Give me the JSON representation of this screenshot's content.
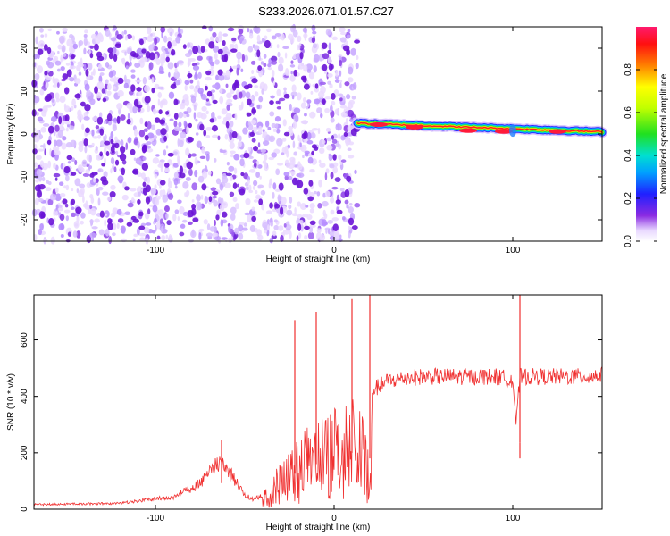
{
  "figure_title": "S233.2026.071.01.57.C27",
  "chart_data": [
    {
      "type": "heatmap",
      "title": "S233.2026.071.01.57.C27",
      "xlabel": "Height of straight line (km)",
      "ylabel": "Frequency (Hz)",
      "xlim": [
        -168,
        150
      ],
      "ylim": [
        -25,
        25
      ],
      "x_ticks": [
        -100,
        0,
        100
      ],
      "y_ticks": [
        20,
        10,
        0,
        -10,
        -20
      ],
      "x_tick_labels": [
        "-100",
        "0",
        "100"
      ],
      "y_tick_labels": [
        "20",
        "10",
        "0",
        "-10",
        "-20"
      ],
      "grid": false,
      "colormap": "rainbow (white/violet at 0 to red/magenta at 1)",
      "colorbar": {
        "label": "Normalized spectral amplitude",
        "range": [
          0,
          1
        ],
        "ticks": [
          0.0,
          0.2,
          0.4,
          0.6,
          0.8
        ],
        "tick_labels": [
          "0.0",
          "0.2",
          "0.4",
          "0.6",
          "0.8"
        ],
        "placement": "right"
      },
      "regions": [
        {
          "name": "noise",
          "x_range": [
            -168,
            13
          ],
          "freq_range": [
            -25,
            25
          ],
          "amplitude": [
            0.0,
            0.15
          ]
        },
        {
          "name": "signal line",
          "x_range": [
            13,
            150
          ],
          "freq_center_start": 2.5,
          "freq_center_end": 0.5,
          "freq_halfwidth": 2,
          "peak_amplitude": 1.0
        }
      ],
      "signal_peaks_x": [
        25,
        45,
        75,
        95,
        125
      ],
      "signal_peak_freqs": [
        2.2,
        1.6,
        0.8,
        0.6,
        0.6
      ]
    },
    {
      "type": "line",
      "xlabel": "Height of straight line (km)",
      "ylabel": "SNR (10 * v/v)",
      "xlim": [
        -168,
        150
      ],
      "ylim": [
        0,
        760
      ],
      "x_ticks": [
        -100,
        0,
        100
      ],
      "y_ticks": [
        0,
        200,
        400,
        600
      ],
      "x_tick_labels": [
        "-100",
        "0",
        "100"
      ],
      "y_tick_labels": [
        "0",
        "200",
        "400",
        "600"
      ],
      "grid": false,
      "color": "#f03030",
      "x": [
        -168,
        -120,
        -100,
        -90,
        -75,
        -68,
        -64,
        -60,
        -55,
        -50,
        -45,
        -40,
        -35,
        -30,
        -25,
        -20,
        -15,
        -10,
        -5,
        0,
        5,
        10,
        15,
        20,
        21,
        25,
        30,
        40,
        50,
        60,
        70,
        80,
        90,
        100,
        102,
        104,
        110,
        120,
        130,
        140,
        150
      ],
      "y": [
        20,
        25,
        45,
        50,
        110,
        180,
        190,
        170,
        120,
        60,
        40,
        60,
        120,
        170,
        210,
        280,
        300,
        320,
        330,
        360,
        380,
        400,
        410,
        360,
        420,
        435,
        455,
        465,
        470,
        470,
        470,
        470,
        470,
        460,
        300,
        470,
        470,
        470,
        470,
        470,
        475
      ],
      "annotations_spikes": [
        {
          "x": -63,
          "y": 245
        },
        {
          "x": -22,
          "y": 670
        },
        {
          "x": -10,
          "y": 700
        },
        {
          "x": 10,
          "y": 745
        },
        {
          "x": 20,
          "y": 760
        },
        {
          "x": 104,
          "y": 760
        },
        {
          "x": 104,
          "y": 180
        }
      ]
    }
  ]
}
